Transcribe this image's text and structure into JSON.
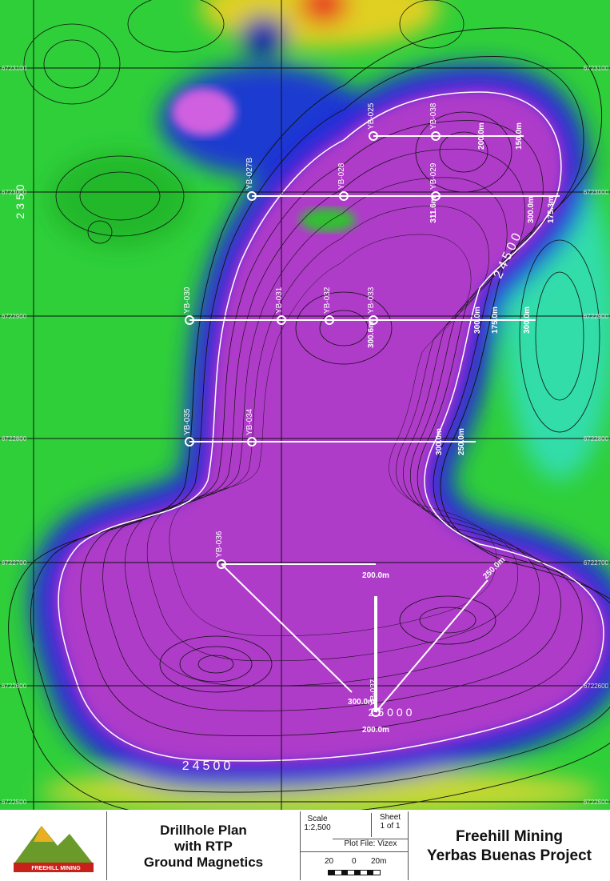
{
  "map": {
    "drillholes": [
      "YB-025",
      "YB-038",
      "YB-027B",
      "YB-028",
      "YB-029",
      "YB-030",
      "YB-031",
      "YB-032",
      "YB-033",
      "YB-035",
      "YB-034",
      "YB-036",
      "YB-037"
    ],
    "depth_labels": [
      "200.0m",
      "150.0m",
      "311.6m",
      "300.0m",
      "175.3m",
      "300.6m",
      "300.0m",
      "175.0m",
      "300.0m",
      "300.0m",
      "250.0m",
      "200.0m",
      "300.0m",
      "200.0m",
      "250.0m"
    ],
    "contour_labels": [
      "24500",
      "24500",
      "25000",
      "2350"
    ],
    "grid_labels": [
      "6723100",
      "6723000",
      "6722900",
      "6722800",
      "6722700",
      "6722600",
      "6722500"
    ]
  },
  "title_block": {
    "logo_text": "FREEHILL MINING",
    "title": [
      "Drillhole Plan",
      "with RTP",
      "Ground Magnetics"
    ],
    "scale_label": "Scale",
    "scale_value": "1:2,500",
    "sheet_label": "Sheet",
    "sheet_value": "1 of 1",
    "plot_file": "Plot File: Vizex",
    "scale_bar": [
      "20",
      "0",
      "20m"
    ],
    "company": "Freehill Mining",
    "project": "Yerbas Buenas Project"
  }
}
